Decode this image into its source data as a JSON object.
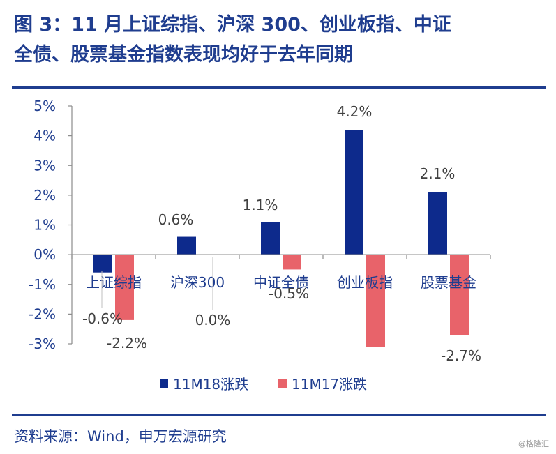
{
  "title": {
    "line1": "图 3：11 月上证综指、沪深 300、创业板指、中证",
    "line2": "全债、股票基金指数表现均好于去年同期"
  },
  "source": "资料来源：Wind，申万宏源研究",
  "watermark": "@格隆汇",
  "colors": {
    "accent": "#1f3d8f",
    "series_11M18": "#0d2a8c",
    "series_11M17": "#e8636a"
  },
  "chart_data": {
    "type": "bar",
    "categories": [
      "上证综指",
      "沪深300",
      "中证全债",
      "创业板指",
      "股票基金"
    ],
    "series": [
      {
        "name": "11M18涨跌",
        "values": [
          -0.6,
          0.6,
          1.1,
          4.2,
          2.1
        ]
      },
      {
        "name": "11M17涨跌",
        "values": [
          -2.2,
          0.0,
          -0.5,
          -3.1,
          -2.7
        ]
      }
    ],
    "data_labels": [
      [
        "-0.6%",
        "0.6%",
        "1.1%",
        "4.2%",
        "2.1%"
      ],
      [
        "-2.2%",
        "0.0%",
        "-0.5%",
        "",
        "-2.7%"
      ]
    ],
    "yticks": [
      "5%",
      "4%",
      "3%",
      "2%",
      "1%",
      "0%",
      "-1%",
      "-2%",
      "-3%"
    ],
    "ylim": [
      -3,
      5
    ],
    "legend_position": "bottom",
    "grid": false
  }
}
